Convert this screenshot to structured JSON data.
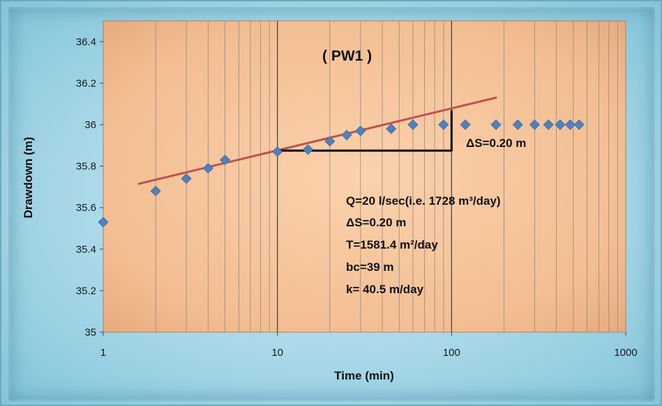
{
  "chart_data": {
    "type": "scatter",
    "title": "( PW1  )",
    "xlabel": "Time (min)",
    "ylabel": "Drawdown (m)",
    "xscale": "log",
    "xlim": [
      1,
      1000
    ],
    "ylim": [
      35,
      36.5
    ],
    "x_ticks": [
      "1",
      "10",
      "100",
      "1000"
    ],
    "y_ticks": [
      "35",
      "35.2",
      "35.4",
      "35.6",
      "35.8",
      "36",
      "36.2",
      "36.4"
    ],
    "grid": "vertical log gridlines",
    "points": [
      {
        "x": 1,
        "y": 35.53
      },
      {
        "x": 2,
        "y": 35.68
      },
      {
        "x": 3,
        "y": 35.74
      },
      {
        "x": 4,
        "y": 35.79
      },
      {
        "x": 5,
        "y": 35.83
      },
      {
        "x": 10,
        "y": 35.87
      },
      {
        "x": 15,
        "y": 35.88
      },
      {
        "x": 20,
        "y": 35.92
      },
      {
        "x": 25,
        "y": 35.95
      },
      {
        "x": 30,
        "y": 35.97
      },
      {
        "x": 45,
        "y": 35.98
      },
      {
        "x": 60,
        "y": 36.0
      },
      {
        "x": 90,
        "y": 36.0
      },
      {
        "x": 120,
        "y": 36.0
      },
      {
        "x": 180,
        "y": 36.0
      },
      {
        "x": 240,
        "y": 36.0
      },
      {
        "x": 300,
        "y": 36.0
      },
      {
        "x": 360,
        "y": 36.0
      },
      {
        "x": 420,
        "y": 36.0
      },
      {
        "x": 480,
        "y": 36.0
      },
      {
        "x": 540,
        "y": 36.0
      }
    ],
    "trendline": {
      "x": [
        1.6,
        180
      ],
      "y": [
        35.715,
        36.13
      ]
    },
    "delta_marker": {
      "x_start": 10,
      "x_end": 100,
      "y_low": 35.875,
      "y_high": 36.07,
      "label": "ΔS=0.20 m"
    },
    "annotations": [
      {
        "text": "Q=20 l/sec(i.e. 1728 m³/day)"
      },
      {
        "text": "ΔS=0.20 m"
      },
      {
        "text": "T=1581.4 m²/day"
      },
      {
        "text": "bc=39 m"
      },
      {
        "text": "k= 40.5 m/day"
      }
    ],
    "colors": {
      "marker": "#4f81bd",
      "trendline": "#c0504d",
      "plot_bg": "#f5c49c",
      "frame_bg": "#a8d8e8",
      "bracket": "#000000"
    }
  }
}
